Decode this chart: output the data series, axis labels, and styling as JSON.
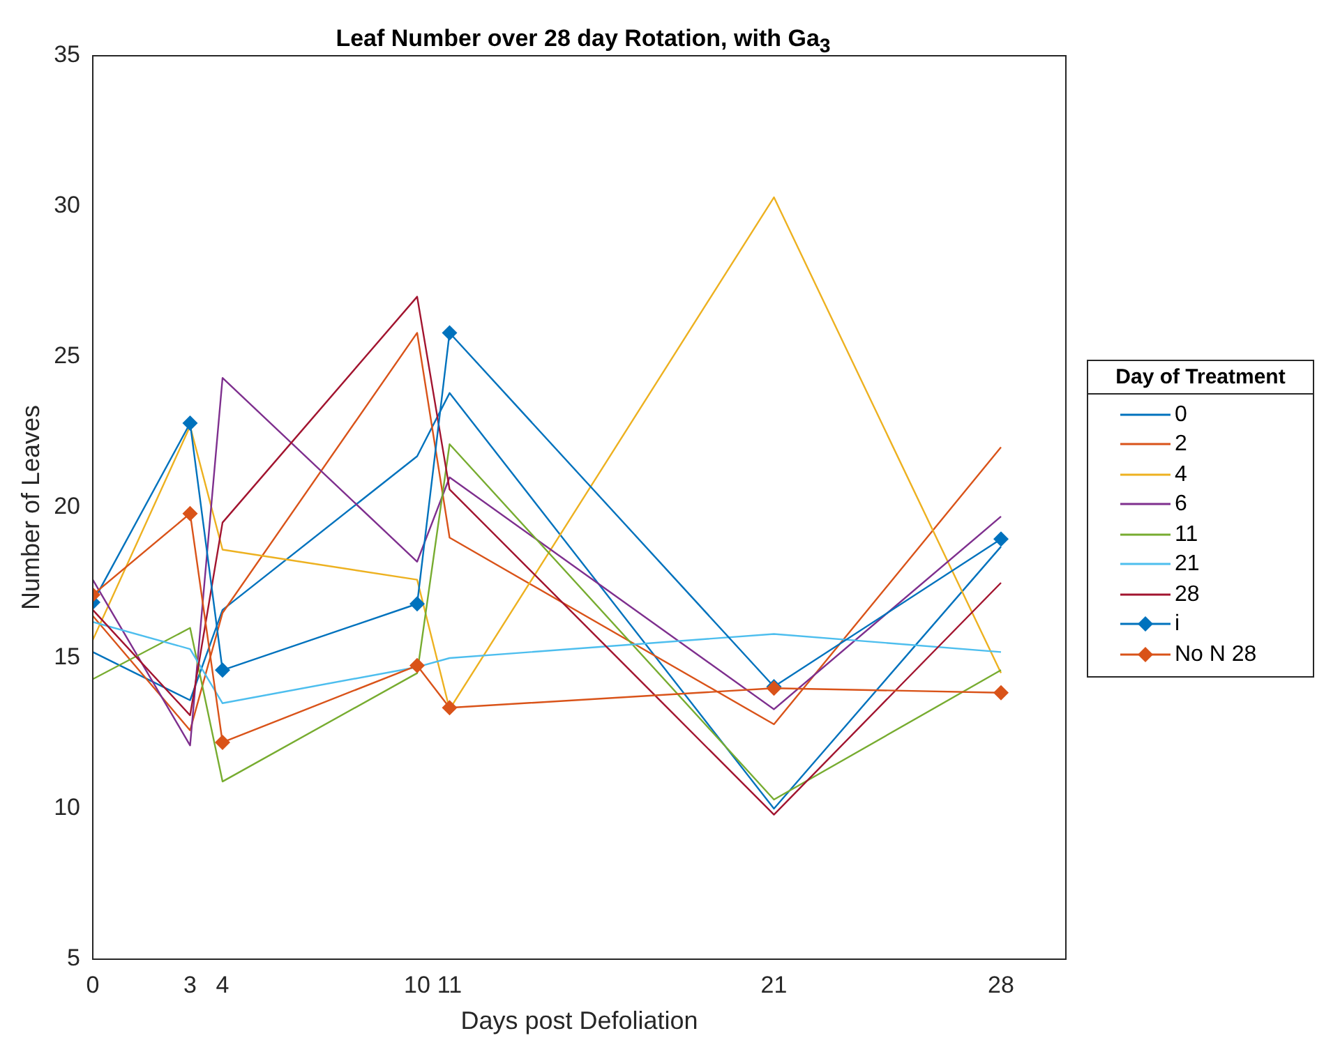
{
  "chart_data": {
    "type": "line",
    "title": "Leaf Number over 28 day Rotation, with Ga$_{3}$",
    "xlabel": "Days post Defoliation",
    "ylabel": "Number of Leaves",
    "legend_title": "Day of Treatment",
    "legend": "right",
    "grid": false,
    "marker": "none",
    "line_style": "solid",
    "x": [
      0,
      3,
      4,
      10,
      11,
      21,
      28
    ],
    "xlim": [
      0,
      30
    ],
    "xticks": [
      0,
      3,
      4,
      10,
      11,
      21,
      28
    ],
    "ylim": [
      5,
      35
    ],
    "yticks": [
      5,
      10,
      15,
      20,
      25,
      30,
      35
    ],
    "series": [
      {
        "name": "0",
        "color": "#0072bd",
        "values": [
          15.2,
          13.6,
          16.6,
          21.7,
          23.8,
          10.0,
          18.7
        ]
      },
      {
        "name": "2",
        "color": "#d95319",
        "values": [
          16.4,
          12.6,
          16.5,
          25.8,
          19.0,
          12.8,
          22.0
        ]
      },
      {
        "name": "4",
        "color": "#edb120",
        "values": [
          15.6,
          22.7,
          18.6,
          17.6,
          13.3,
          30.3,
          14.5
        ]
      },
      {
        "name": "6",
        "color": "#7e2f8e",
        "values": [
          17.6,
          12.1,
          24.3,
          18.2,
          21.0,
          13.3,
          19.7
        ]
      },
      {
        "name": "11",
        "color": "#77ac30",
        "values": [
          14.3,
          16.0,
          10.9,
          14.5,
          22.1,
          10.3,
          14.6
        ]
      },
      {
        "name": "21",
        "color": "#4dbeee",
        "values": [
          16.2,
          15.3,
          13.5,
          14.7,
          15.0,
          15.8,
          15.2
        ]
      },
      {
        "name": "28",
        "color": "#a2142f",
        "values": [
          16.6,
          13.1,
          19.5,
          27.0,
          20.6,
          9.8,
          17.5
        ]
      },
      {
        "name": "i",
        "color": "#0072bd",
        "marker": "diamond",
        "values": [
          16.85,
          22.8,
          14.6,
          16.8,
          25.8,
          14.05,
          18.95
        ]
      },
      {
        "name": "No N 28",
        "color": "#d95319",
        "marker": "diamond",
        "values": [
          17.1,
          19.8,
          12.2,
          14.75,
          13.35,
          14.0,
          13.85
        ]
      }
    ]
  }
}
